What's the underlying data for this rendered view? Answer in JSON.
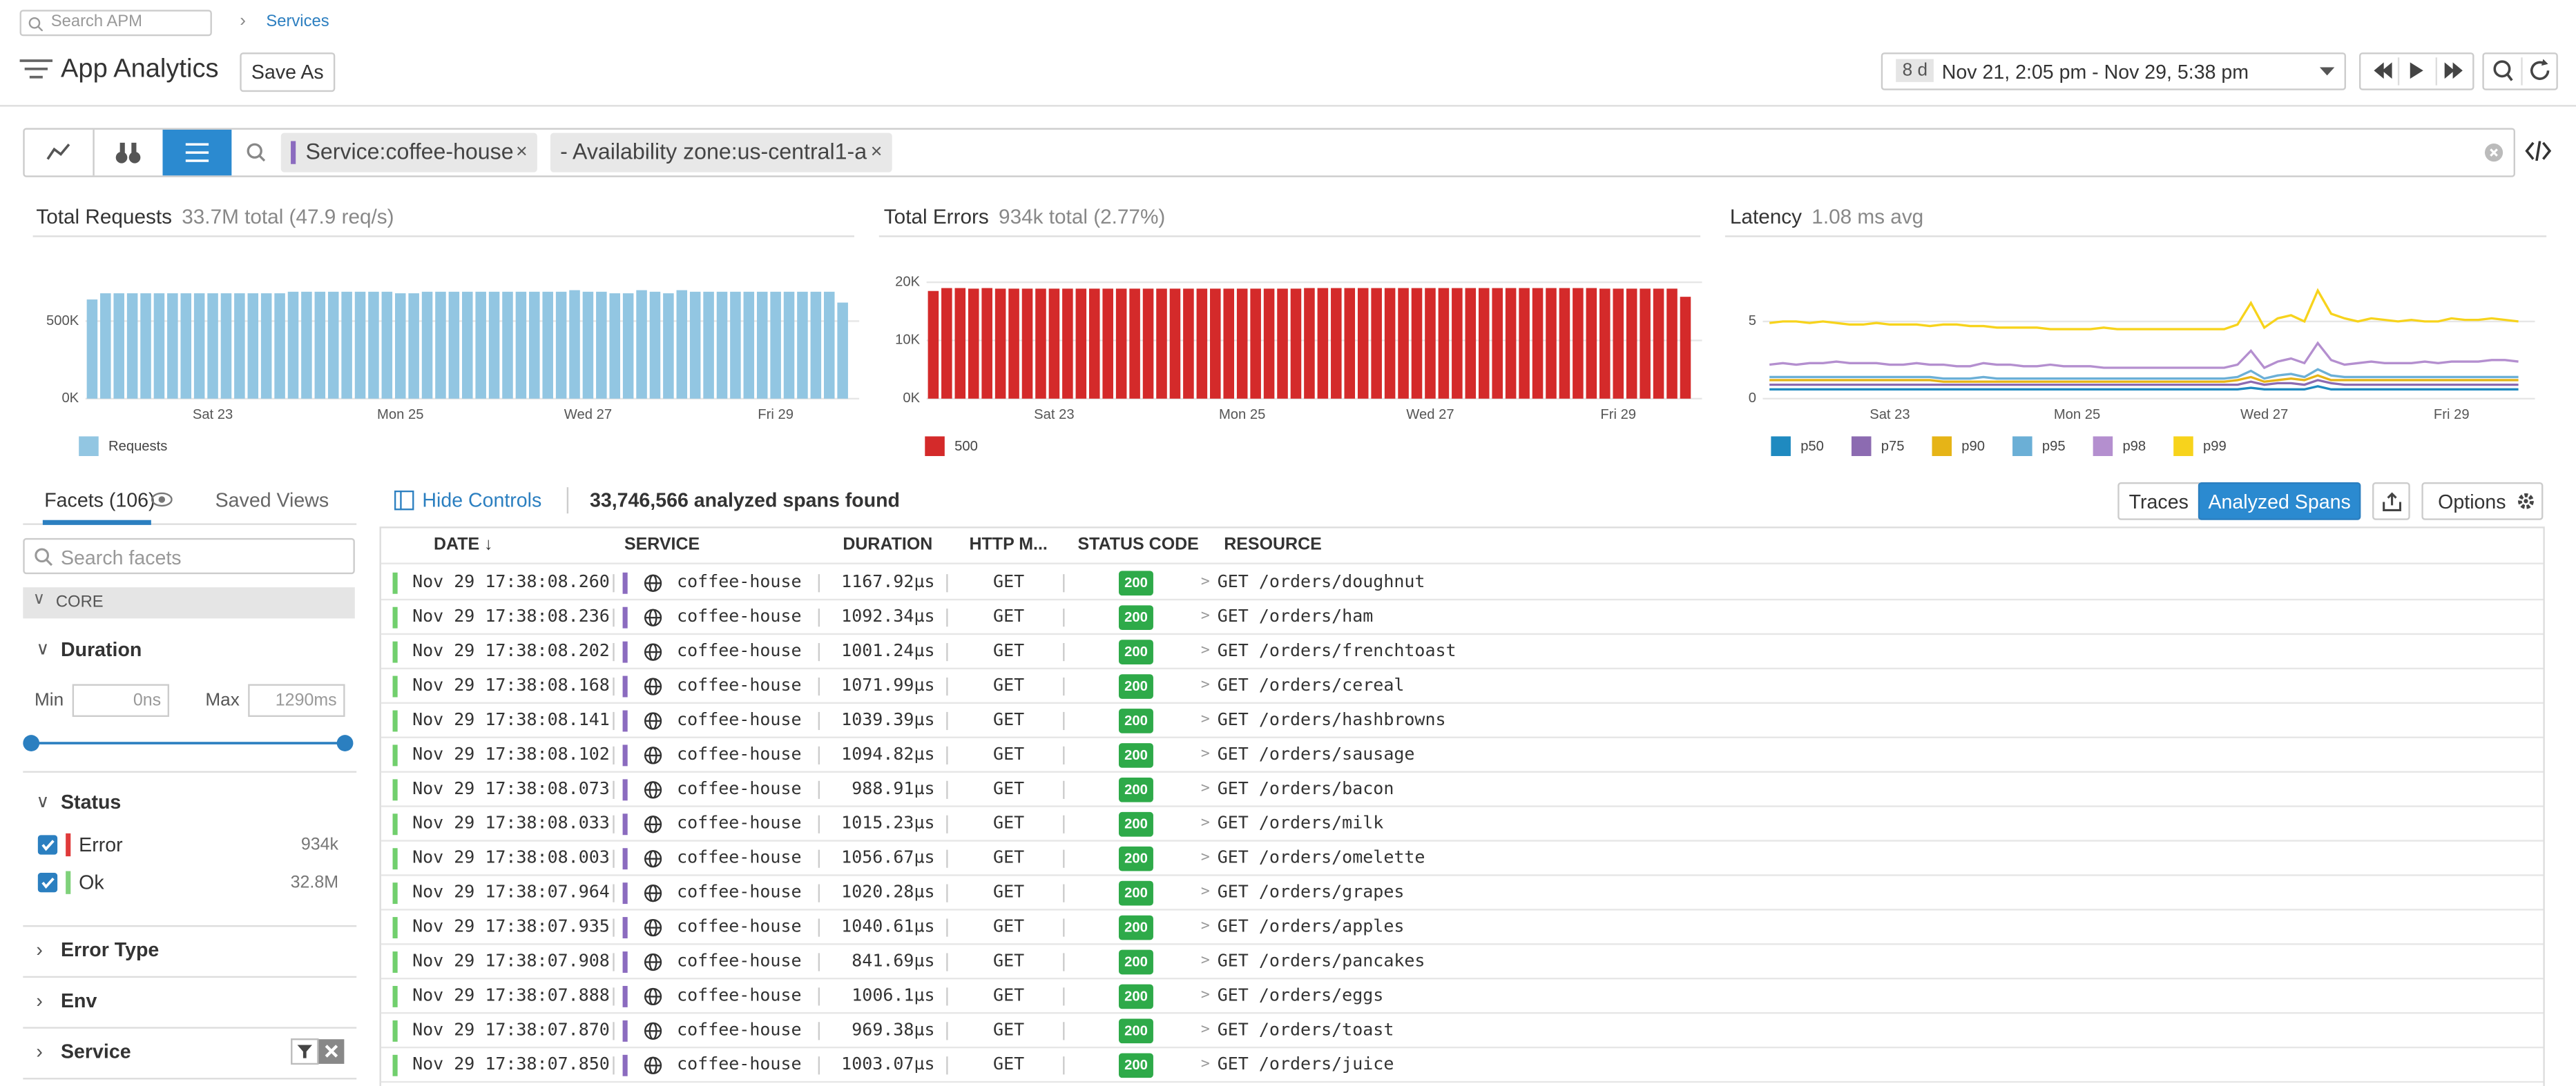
{
  "header": {
    "search_placeholder": "Search APM",
    "breadcrumb": "Services",
    "title": "App Analytics",
    "save_as": "Save As",
    "time_badge": "8 d",
    "time_range": "Nov 21, 2:05 pm - Nov 29, 5:38 pm"
  },
  "query": {
    "tags": [
      "Service:coffee-house",
      "- Availability zone:us-central1-a"
    ]
  },
  "chart_data": [
    {
      "type": "bar",
      "title": "Total Requests",
      "subtitle": "33.7M total (47.9 req/s)",
      "categories": [
        null,
        null,
        null,
        null,
        null,
        null,
        null,
        null,
        null,
        "Sat 23",
        null,
        null,
        null,
        null,
        null,
        null,
        null,
        null,
        null,
        null,
        null,
        null,
        null,
        "Mon 25",
        null,
        null,
        null,
        null,
        null,
        null,
        null,
        null,
        null,
        null,
        null,
        null,
        null,
        "Wed 27",
        null,
        null,
        null,
        null,
        null,
        null,
        null,
        null,
        null,
        null,
        null,
        null,
        null,
        "Fri 29",
        null,
        null,
        null,
        null,
        null
      ],
      "series": [
        {
          "name": "Requests",
          "color": "#92c6e2",
          "values": [
            640000,
            680000,
            680000,
            680000,
            680000,
            680000,
            680000,
            680000,
            680000,
            680000,
            680000,
            680000,
            680000,
            680000,
            680000,
            690000,
            690000,
            690000,
            690000,
            690000,
            690000,
            690000,
            690000,
            680000,
            680000,
            690000,
            690000,
            690000,
            690000,
            690000,
            690000,
            690000,
            690000,
            690000,
            690000,
            690000,
            700000,
            690000,
            690000,
            680000,
            680000,
            700000,
            690000,
            680000,
            700000,
            690000,
            690000,
            690000,
            690000,
            690000,
            690000,
            690000,
            690000,
            690000,
            690000,
            690000,
            620000
          ]
        }
      ],
      "ylim": [
        0,
        900000
      ],
      "yticks": [
        {
          "value": 0,
          "label": "0K"
        },
        {
          "value": 500000,
          "label": "500K"
        }
      ],
      "grid": true
    },
    {
      "type": "bar",
      "title": "Total Errors",
      "subtitle": "934k total (2.77%)",
      "categories": [
        null,
        null,
        null,
        null,
        null,
        null,
        null,
        null,
        null,
        "Sat 23",
        null,
        null,
        null,
        null,
        null,
        null,
        null,
        null,
        null,
        null,
        null,
        null,
        null,
        "Mon 25",
        null,
        null,
        null,
        null,
        null,
        null,
        null,
        null,
        null,
        null,
        null,
        null,
        null,
        "Wed 27",
        null,
        null,
        null,
        null,
        null,
        null,
        null,
        null,
        null,
        null,
        null,
        null,
        null,
        "Fri 29",
        null,
        null,
        null,
        null,
        null
      ],
      "series": [
        {
          "name": "500",
          "color": "#d42a2a",
          "values": [
            18500,
            19000,
            19000,
            18900,
            19000,
            18900,
            18900,
            18900,
            18900,
            18900,
            18900,
            18900,
            18900,
            18900,
            18900,
            18900,
            18900,
            18900,
            18900,
            18900,
            18900,
            18900,
            18900,
            18900,
            18900,
            18900,
            18900,
            18900,
            19000,
            19000,
            19000,
            19000,
            19000,
            19000,
            19000,
            19000,
            19000,
            19000,
            19000,
            19000,
            19000,
            19000,
            19000,
            19000,
            19000,
            19000,
            19000,
            19000,
            19000,
            19000,
            18900,
            18900,
            18900,
            18900,
            18900,
            18900,
            17500
          ]
        }
      ],
      "ylim": [
        0,
        21000
      ],
      "yticks": [
        {
          "value": 0,
          "label": "0K"
        },
        {
          "value": 10000,
          "label": "10K"
        },
        {
          "value": 20000,
          "label": "20K"
        }
      ],
      "grid": true
    },
    {
      "type": "line",
      "title": "Latency",
      "subtitle": "1.08 ms avg",
      "categories": [
        null,
        null,
        null,
        null,
        null,
        null,
        null,
        null,
        null,
        "Sat 23",
        null,
        null,
        null,
        null,
        null,
        null,
        null,
        null,
        null,
        null,
        null,
        null,
        null,
        "Mon 25",
        null,
        null,
        null,
        null,
        null,
        null,
        null,
        null,
        null,
        null,
        null,
        null,
        null,
        "Wed 27",
        null,
        null,
        null,
        null,
        null,
        null,
        null,
        null,
        null,
        null,
        null,
        null,
        null,
        "Fri 29",
        null,
        null,
        null,
        null,
        null
      ],
      "series": [
        {
          "name": "p50",
          "color": "#1f8ac0",
          "values": [
            0.6,
            0.6,
            0.6,
            0.6,
            0.6,
            0.6,
            0.6,
            0.6,
            0.6,
            0.6,
            0.6,
            0.6,
            0.6,
            0.6,
            0.6,
            0.6,
            0.6,
            0.6,
            0.6,
            0.6,
            0.6,
            0.6,
            0.6,
            0.6,
            0.6,
            0.6,
            0.6,
            0.6,
            0.6,
            0.6,
            0.6,
            0.6,
            0.6,
            0.6,
            0.6,
            0.6,
            0.7,
            0.6,
            0.6,
            0.6,
            0.6,
            0.8,
            0.6,
            0.6,
            0.6,
            0.6,
            0.6,
            0.6,
            0.6,
            0.6,
            0.6,
            0.6,
            0.6,
            0.6,
            0.6,
            0.6,
            0.6
          ]
        },
        {
          "name": "p75",
          "color": "#8c6bb1",
          "values": [
            0.9,
            0.9,
            0.9,
            0.9,
            0.9,
            0.9,
            0.9,
            0.9,
            0.9,
            0.9,
            0.9,
            0.9,
            0.9,
            0.9,
            0.9,
            0.9,
            0.9,
            0.9,
            0.9,
            0.9,
            0.9,
            0.9,
            0.9,
            0.9,
            0.9,
            0.9,
            0.9,
            0.9,
            0.9,
            0.9,
            0.9,
            0.9,
            0.9,
            0.9,
            0.9,
            0.9,
            1.1,
            0.9,
            1.0,
            1.0,
            0.9,
            1.2,
            1.0,
            0.9,
            0.9,
            0.9,
            0.9,
            0.9,
            0.9,
            0.9,
            0.9,
            0.9,
            0.9,
            0.9,
            0.9,
            0.9,
            0.9
          ]
        },
        {
          "name": "p90",
          "color": "#e6b417",
          "values": [
            1.2,
            1.2,
            1.2,
            1.2,
            1.2,
            1.2,
            1.2,
            1.2,
            1.2,
            1.2,
            1.2,
            1.2,
            1.2,
            1.1,
            1.1,
            1.1,
            1.1,
            1.1,
            1.1,
            1.1,
            1.1,
            1.1,
            1.1,
            1.1,
            1.1,
            1.1,
            1.1,
            1.1,
            1.1,
            1.1,
            1.1,
            1.1,
            1.1,
            1.1,
            1.1,
            1.2,
            1.4,
            1.1,
            1.2,
            1.3,
            1.2,
            1.5,
            1.2,
            1.2,
            1.2,
            1.2,
            1.2,
            1.2,
            1.2,
            1.2,
            1.2,
            1.2,
            1.2,
            1.2,
            1.2,
            1.2,
            1.2
          ]
        },
        {
          "name": "p95",
          "color": "#6bafd6",
          "values": [
            1.4,
            1.4,
            1.4,
            1.4,
            1.4,
            1.4,
            1.4,
            1.4,
            1.4,
            1.4,
            1.4,
            1.4,
            1.4,
            1.3,
            1.3,
            1.3,
            1.4,
            1.3,
            1.3,
            1.3,
            1.3,
            1.3,
            1.3,
            1.3,
            1.3,
            1.3,
            1.3,
            1.3,
            1.3,
            1.3,
            1.3,
            1.3,
            1.3,
            1.3,
            1.3,
            1.4,
            1.8,
            1.3,
            1.5,
            1.6,
            1.4,
            1.9,
            1.5,
            1.4,
            1.4,
            1.4,
            1.4,
            1.4,
            1.4,
            1.4,
            1.4,
            1.4,
            1.4,
            1.4,
            1.4,
            1.4,
            1.4
          ]
        },
        {
          "name": "p98",
          "color": "#b48fcf",
          "values": [
            2.2,
            2.3,
            2.2,
            2.3,
            2.3,
            2.4,
            2.3,
            2.3,
            2.3,
            2.2,
            2.2,
            2.3,
            2.2,
            2.2,
            2.1,
            2.1,
            2.3,
            2.2,
            2.2,
            2.1,
            2.1,
            2.2,
            2.1,
            2.1,
            2.1,
            2.0,
            2.0,
            2.0,
            2.0,
            2.0,
            2.0,
            2.0,
            2.0,
            2.0,
            2.0,
            2.2,
            3.1,
            2.0,
            2.4,
            2.6,
            2.3,
            3.6,
            2.5,
            2.2,
            2.3,
            2.4,
            2.3,
            2.3,
            2.3,
            2.4,
            2.3,
            2.4,
            2.4,
            2.4,
            2.5,
            2.5,
            2.4
          ]
        },
        {
          "name": "p99",
          "color": "#f7d31c",
          "values": [
            4.9,
            5.0,
            5.0,
            4.9,
            5.0,
            4.9,
            4.8,
            4.8,
            4.9,
            4.8,
            4.8,
            4.8,
            4.7,
            4.8,
            4.8,
            4.7,
            4.7,
            4.6,
            4.6,
            4.6,
            4.6,
            4.5,
            4.5,
            4.5,
            4.5,
            4.6,
            4.5,
            4.5,
            4.5,
            4.5,
            4.5,
            4.5,
            4.5,
            4.5,
            4.5,
            4.8,
            6.2,
            4.6,
            5.2,
            5.4,
            5.0,
            7.0,
            5.5,
            5.2,
            5.0,
            5.2,
            5.1,
            5.0,
            5.1,
            5.0,
            5.0,
            5.2,
            5.1,
            5.1,
            5.2,
            5.1,
            5.0
          ]
        }
      ],
      "ylim": [
        0,
        8.5
      ],
      "yticks": [
        0,
        5
      ],
      "grid": true
    }
  ],
  "facets": {
    "tabs": [
      "Facets (106)",
      "Saved Views"
    ],
    "search_placeholder": "Search facets",
    "group": "CORE",
    "duration": {
      "title": "Duration",
      "min_label": "Min",
      "min": "0ns",
      "max_label": "Max",
      "max": "1290ms"
    },
    "status": {
      "title": "Status",
      "items": [
        {
          "label": "Error",
          "count": "934k"
        },
        {
          "label": "Ok",
          "count": "32.8M"
        }
      ]
    },
    "sections": [
      "Error Type",
      "Env",
      "Service"
    ]
  },
  "results": {
    "hide_controls": "Hide Controls",
    "count": "33,746,566 analyzed spans found",
    "views": [
      "Traces",
      "Analyzed Spans"
    ],
    "options": "Options",
    "columns": [
      "DATE ↓",
      "SERVICE",
      "DURATION",
      "HTTP M...",
      "STATUS CODE",
      "RESOURCE"
    ],
    "rows": [
      [
        "Nov 29 17:38:08.260",
        "coffee-house",
        "1167.92µs",
        "GET",
        "200",
        "GET /orders/doughnut"
      ],
      [
        "Nov 29 17:38:08.236",
        "coffee-house",
        "1092.34µs",
        "GET",
        "200",
        "GET /orders/ham"
      ],
      [
        "Nov 29 17:38:08.202",
        "coffee-house",
        "1001.24µs",
        "GET",
        "200",
        "GET /orders/frenchtoast"
      ],
      [
        "Nov 29 17:38:08.168",
        "coffee-house",
        "1071.99µs",
        "GET",
        "200",
        "GET /orders/cereal"
      ],
      [
        "Nov 29 17:38:08.141",
        "coffee-house",
        "1039.39µs",
        "GET",
        "200",
        "GET /orders/hashbrowns"
      ],
      [
        "Nov 29 17:38:08.102",
        "coffee-house",
        "1094.82µs",
        "GET",
        "200",
        "GET /orders/sausage"
      ],
      [
        "Nov 29 17:38:08.073",
        "coffee-house",
        "988.91µs",
        "GET",
        "200",
        "GET /orders/bacon"
      ],
      [
        "Nov 29 17:38:08.033",
        "coffee-house",
        "1015.23µs",
        "GET",
        "200",
        "GET /orders/milk"
      ],
      [
        "Nov 29 17:38:08.003",
        "coffee-house",
        "1056.67µs",
        "GET",
        "200",
        "GET /orders/omelette"
      ],
      [
        "Nov 29 17:38:07.964",
        "coffee-house",
        "1020.28µs",
        "GET",
        "200",
        "GET /orders/grapes"
      ],
      [
        "Nov 29 17:38:07.935",
        "coffee-house",
        "1040.61µs",
        "GET",
        "200",
        "GET /orders/apples"
      ],
      [
        "Nov 29 17:38:07.908",
        "coffee-house",
        "841.69µs",
        "GET",
        "200",
        "GET /orders/pancakes"
      ],
      [
        "Nov 29 17:38:07.888",
        "coffee-house",
        "1006.1µs",
        "GET",
        "200",
        "GET /orders/eggs"
      ],
      [
        "Nov 29 17:38:07.870",
        "coffee-house",
        "969.38µs",
        "GET",
        "200",
        "GET /orders/toast"
      ],
      [
        "Nov 29 17:38:07.850",
        "coffee-house",
        "1003.07µs",
        "GET",
        "200",
        "GET /orders/juice"
      ]
    ]
  }
}
